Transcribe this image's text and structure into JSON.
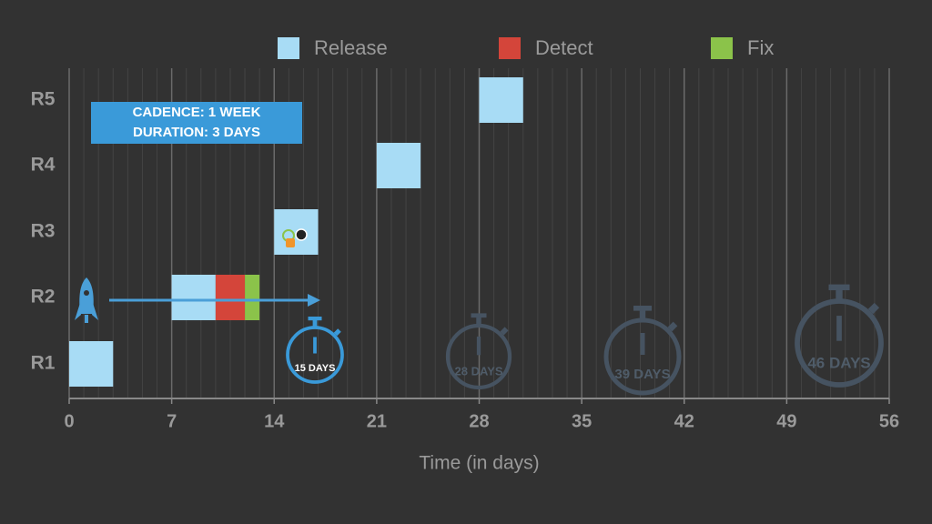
{
  "chart_data": {
    "type": "gantt",
    "categories": [
      "R1",
      "R2",
      "R3",
      "R4",
      "R5"
    ],
    "series": [
      {
        "name": "Release",
        "color": "#a8dcf5",
        "starts": [
          0,
          7,
          14,
          21,
          28
        ],
        "ends": [
          3,
          10,
          17,
          24,
          31
        ]
      },
      {
        "name": "Detect",
        "color": "#d4453a",
        "starts": [
          null,
          10,
          null,
          null,
          null
        ],
        "ends": [
          null,
          12,
          null,
          null,
          null
        ]
      },
      {
        "name": "Fix",
        "color": "#8bc34a",
        "starts": [
          null,
          12,
          null,
          null,
          null
        ],
        "ends": [
          null,
          13,
          null,
          null,
          null
        ]
      }
    ],
    "xlim": [
      0,
      56
    ],
    "xticks": [
      0,
      7,
      14,
      21,
      28,
      35,
      42,
      49,
      56
    ],
    "xlabel": "Time (in days)",
    "grid": true,
    "minor_grid": true,
    "legend": "top",
    "annotations": {
      "box": [
        "CADENCE: 1 WEEK",
        "DURATION: 3 DAYS"
      ],
      "timers": [
        "15 DAYS",
        "28 DAYS",
        "39 DAYS",
        "46 DAYS"
      ]
    }
  }
}
